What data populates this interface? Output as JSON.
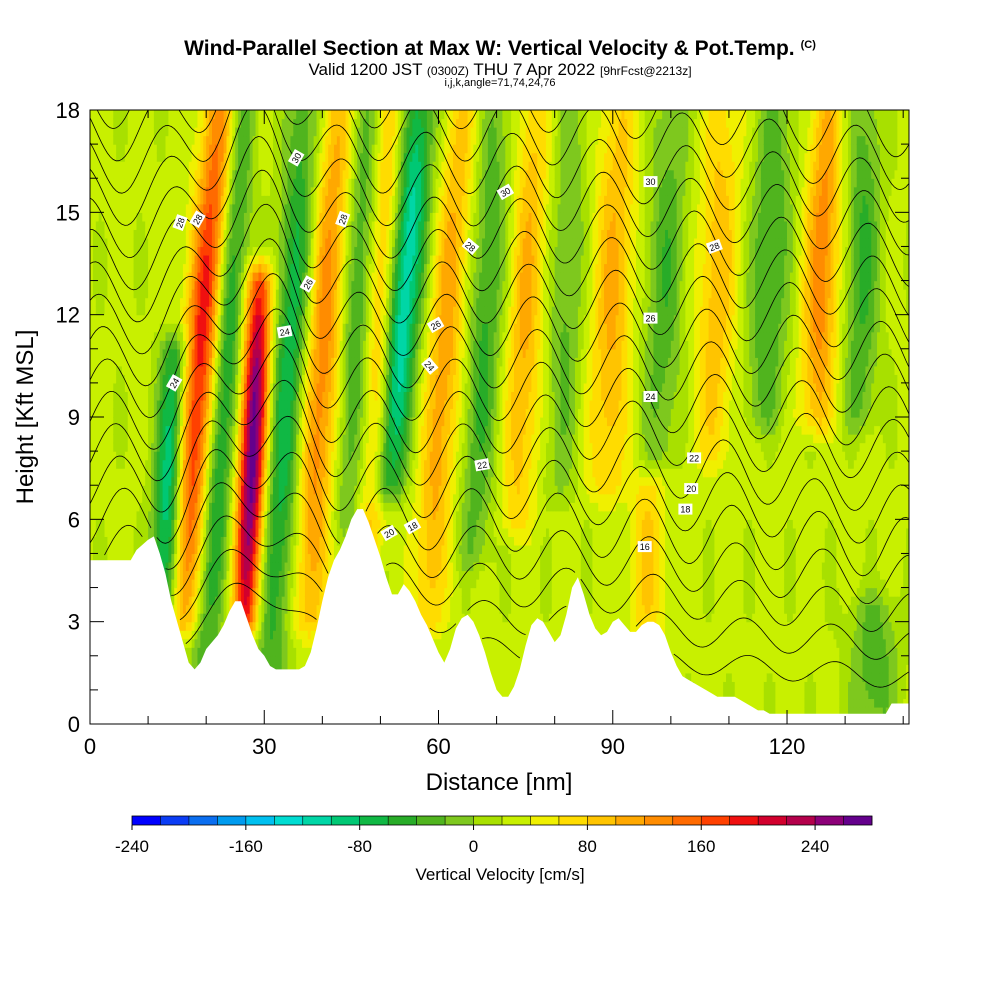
{
  "title": {
    "main": "Wind-Parallel Section at Max W: Vertical Velocity & Pot.Temp.",
    "copyright": "(C)",
    "valid_prefix": "Valid 1200 JST",
    "valid_utc": "(0300Z)",
    "valid_date": "THU 7 Apr 2022",
    "forecast": "[9hrFcst@2213z]",
    "indices": "i,j,k,angle=71,74,24,76"
  },
  "chart_data": {
    "type": "heatmap",
    "xlabel": "Distance [nm]",
    "ylabel": "Height [Kft MSL]",
    "xlim": [
      0,
      141
    ],
    "ylim": [
      0,
      18
    ],
    "xticks": [
      0,
      30,
      60,
      90,
      120
    ],
    "yticks": [
      0,
      3,
      6,
      9,
      12,
      15,
      18
    ],
    "colorbar": {
      "title": "Vertical Velocity [cm/s]",
      "range": [
        -240,
        280
      ],
      "step": 20,
      "tick_values": [
        -240,
        -160,
        -80,
        0,
        80,
        160,
        240
      ],
      "tick_labels": [
        "-240",
        "-160",
        "-80",
        "0",
        "80",
        "160",
        "240"
      ],
      "colors": [
        "#0000ff",
        "#0a3cf5",
        "#0a6ef0",
        "#009bef",
        "#00c0f0",
        "#00dcd2",
        "#00d6a6",
        "#00c874",
        "#10b844",
        "#28ac28",
        "#50b41e",
        "#7ec81e",
        "#a8e000",
        "#c8f000",
        "#f0f000",
        "#ffdc00",
        "#ffc400",
        "#ffa800",
        "#ff8c00",
        "#ff6a00",
        "#ff4000",
        "#f01010",
        "#d2002d",
        "#b4004b",
        "#8c0078",
        "#64008c"
      ]
    },
    "terrain_profile": {
      "x": [
        0,
        7,
        8,
        10,
        11,
        12,
        13,
        14,
        15,
        16,
        17,
        18,
        19,
        20,
        21,
        22,
        23,
        24,
        25,
        26,
        27,
        28,
        29,
        30,
        31,
        32,
        33,
        34,
        35,
        36,
        37,
        38,
        39,
        40,
        41,
        42,
        43,
        44,
        45,
        46,
        47,
        48,
        49,
        50,
        51,
        52,
        53,
        54,
        55,
        56,
        57,
        58,
        59,
        60,
        61,
        62,
        63,
        64,
        65,
        66,
        67,
        68,
        69,
        70,
        71,
        72,
        73,
        74,
        75,
        76,
        77,
        78,
        79,
        80,
        81,
        82,
        83,
        84,
        85,
        86,
        87,
        88,
        89,
        90,
        91,
        92,
        93,
        94,
        95,
        96,
        97,
        98,
        99,
        100,
        101,
        102,
        103,
        104,
        105,
        106,
        107,
        108,
        109,
        110,
        111,
        112,
        113,
        114,
        115,
        116,
        117,
        118,
        119,
        120,
        121,
        122,
        123,
        124,
        125,
        126,
        127,
        128,
        129,
        130,
        131,
        132,
        133,
        134,
        135,
        136,
        137,
        138,
        139,
        140,
        141
      ],
      "height_kft": [
        4.8,
        4.8,
        5.1,
        5.4,
        5.5,
        5.0,
        4.4,
        3.6,
        3.0,
        2.4,
        1.8,
        1.6,
        1.8,
        2.2,
        2.4,
        2.6,
        2.9,
        3.3,
        3.6,
        3.6,
        3.1,
        2.6,
        2.2,
        2.0,
        1.7,
        1.6,
        1.6,
        1.6,
        1.6,
        1.6,
        1.7,
        2.1,
        2.8,
        3.6,
        4.3,
        4.8,
        5.1,
        5.5,
        6.0,
        6.3,
        6.3,
        5.9,
        5.4,
        4.9,
        4.3,
        3.8,
        3.8,
        4.1,
        3.9,
        3.6,
        3.2,
        2.9,
        2.5,
        2.1,
        1.8,
        2.2,
        2.8,
        3.1,
        3.2,
        3.0,
        2.6,
        2.1,
        1.5,
        1.0,
        0.8,
        0.8,
        1.1,
        1.6,
        2.3,
        2.9,
        3.1,
        3.0,
        2.7,
        2.4,
        2.6,
        3.2,
        4.0,
        4.3,
        3.8,
        3.2,
        2.8,
        2.6,
        2.7,
        3.0,
        3.1,
        2.9,
        2.7,
        2.7,
        2.9,
        3.0,
        3.0,
        2.9,
        2.6,
        2.1,
        1.7,
        1.4,
        1.3,
        1.2,
        1.1,
        1.0,
        0.9,
        0.8,
        0.8,
        0.8,
        0.8,
        0.7,
        0.6,
        0.5,
        0.4,
        0.4,
        0.3,
        0.3,
        0.3,
        0.3,
        0.3,
        0.3,
        0.3,
        0.3,
        0.3,
        0.3,
        0.3,
        0.3,
        0.3,
        0.3,
        0.3,
        0.3,
        0.3,
        0.3,
        0.3,
        0.3,
        0.3,
        0.6,
        0.6,
        0.6,
        0.6
      ]
    },
    "vertical_velocity_bands_cm_s": [
      {
        "x_center": 13.5,
        "width_nm": 2.5,
        "tilt_nm_per_kft": 0.25,
        "peak": -140,
        "z_min": 1.5,
        "z_max": 11
      },
      {
        "x_center": 19,
        "width_nm": 3,
        "tilt_nm_per_kft": 0.45,
        "peak": 170,
        "z_min": 3,
        "z_max": 18
      },
      {
        "x_center": 23,
        "width_nm": 2.5,
        "tilt_nm_per_kft": 0.4,
        "peak": -100,
        "z_min": 1.5,
        "z_max": 18
      },
      {
        "x_center": 28,
        "width_nm": 2.3,
        "tilt_nm_per_kft": 0.25,
        "peak": 250,
        "z_min": 3,
        "z_max": 13
      },
      {
        "x_center": 34,
        "width_nm": 3,
        "tilt_nm_per_kft": 0.35,
        "peak": -100,
        "z_min": 1.5,
        "z_max": 18
      },
      {
        "x_center": 40,
        "width_nm": 3,
        "tilt_nm_per_kft": 0.35,
        "peak": 110,
        "z_min": 3,
        "z_max": 18
      },
      {
        "x_center": 46,
        "width_nm": 2.5,
        "tilt_nm_per_kft": 0.3,
        "peak": -70,
        "z_min": 6,
        "z_max": 18
      },
      {
        "x_center": 50,
        "width_nm": 2.5,
        "tilt_nm_per_kft": 0.3,
        "peak": 80,
        "z_min": 5,
        "z_max": 18
      },
      {
        "x_center": 54,
        "width_nm": 3,
        "tilt_nm_per_kft": 0.5,
        "peak": -150,
        "z_min": 7,
        "z_max": 18
      },
      {
        "x_center": 61,
        "width_nm": 3,
        "tilt_nm_per_kft": 0.4,
        "peak": 90,
        "z_min": 3,
        "z_max": 18
      },
      {
        "x_center": 68,
        "width_nm": 3,
        "tilt_nm_per_kft": 0.3,
        "peak": -70,
        "z_min": 5,
        "z_max": 18
      },
      {
        "x_center": 75,
        "width_nm": 3,
        "tilt_nm_per_kft": 0.25,
        "peak": 80,
        "z_min": 6,
        "z_max": 18
      },
      {
        "x_center": 82,
        "width_nm": 3,
        "tilt_nm_per_kft": 0.2,
        "peak": -50,
        "z_min": 7,
        "z_max": 18
      },
      {
        "x_center": 90,
        "width_nm": 3.5,
        "tilt_nm_per_kft": 0.2,
        "peak": 80,
        "z_min": 7,
        "z_max": 18
      },
      {
        "x_center": 99,
        "width_nm": 3.5,
        "tilt_nm_per_kft": 0.2,
        "peak": -60,
        "z_min": 8,
        "z_max": 18
      },
      {
        "x_center": 108,
        "width_nm": 3.5,
        "tilt_nm_per_kft": 0.2,
        "peak": 70,
        "z_min": 8,
        "z_max": 18
      },
      {
        "x_center": 117,
        "width_nm": 3.5,
        "tilt_nm_per_kft": 0.2,
        "peak": -70,
        "z_min": 9,
        "z_max": 18
      },
      {
        "x_center": 126,
        "width_nm": 3,
        "tilt_nm_per_kft": 0.2,
        "peak": 110,
        "z_min": 9,
        "z_max": 18
      },
      {
        "x_center": 133,
        "width_nm": 3,
        "tilt_nm_per_kft": 0.1,
        "peak": -70,
        "z_min": 9,
        "z_max": 18
      },
      {
        "x_center": 135,
        "width_nm": 4,
        "tilt_nm_per_kft": 0,
        "peak": -60,
        "z_min": 0,
        "z_max": 3.5
      },
      {
        "x_center": 96,
        "width_nm": 3,
        "tilt_nm_per_kft": 0,
        "peak": 60,
        "z_min": 2.5,
        "z_max": 7
      }
    ],
    "potential_temperature_contours": {
      "label_values": [
        16,
        18,
        20,
        22,
        24,
        26,
        28,
        30
      ],
      "labels": [
        {
          "text": "30",
          "x": 35.5,
          "y": 16.6,
          "angle": -60
        },
        {
          "text": "30",
          "x": 71.5,
          "y": 15.6,
          "angle": -30
        },
        {
          "text": "30",
          "x": 96.5,
          "y": 15.9,
          "angle": 0
        },
        {
          "text": "28",
          "x": 15.5,
          "y": 14.7,
          "angle": -70
        },
        {
          "text": "28",
          "x": 18.5,
          "y": 14.8,
          "angle": -60
        },
        {
          "text": "28",
          "x": 43.5,
          "y": 14.8,
          "angle": -70
        },
        {
          "text": "28",
          "x": 65.5,
          "y": 14.0,
          "angle": 40
        },
        {
          "text": "28",
          "x": 107.5,
          "y": 14.0,
          "angle": -20
        },
        {
          "text": "26",
          "x": 37.5,
          "y": 12.9,
          "angle": -60
        },
        {
          "text": "26",
          "x": 59.5,
          "y": 11.7,
          "angle": -30
        },
        {
          "text": "26",
          "x": 96.5,
          "y": 11.9,
          "angle": 0
        },
        {
          "text": "24",
          "x": 33.5,
          "y": 11.5,
          "angle": -10
        },
        {
          "text": "24",
          "x": 14.5,
          "y": 10.0,
          "angle": -60
        },
        {
          "text": "24",
          "x": 58.5,
          "y": 10.5,
          "angle": 50
        },
        {
          "text": "24",
          "x": 96.5,
          "y": 9.6,
          "angle": 0
        },
        {
          "text": "22",
          "x": 67.5,
          "y": 7.6,
          "angle": -10
        },
        {
          "text": "22",
          "x": 104,
          "y": 7.8,
          "angle": 0
        },
        {
          "text": "20",
          "x": 103.5,
          "y": 6.9,
          "angle": 0
        },
        {
          "text": "20",
          "x": 51.5,
          "y": 5.6,
          "angle": -30
        },
        {
          "text": "18",
          "x": 55.5,
          "y": 5.8,
          "angle": -30
        },
        {
          "text": "18",
          "x": 102.5,
          "y": 6.3,
          "angle": 0
        },
        {
          "text": "16",
          "x": 95.5,
          "y": 5.2,
          "angle": 0
        }
      ]
    }
  }
}
